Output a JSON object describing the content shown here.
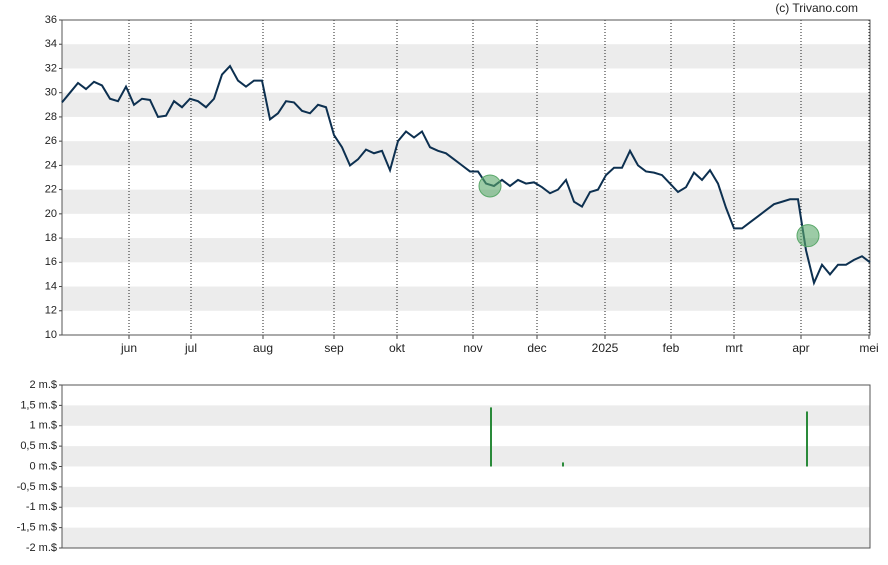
{
  "source": "(c) Trivano.com",
  "chart_data": [
    {
      "type": "line",
      "xlim": [
        0,
        101
      ],
      "xticks": [
        {
          "value": 8.375,
          "label": "jun"
        },
        {
          "value": 16.125,
          "label": "jul"
        },
        {
          "value": 25.125,
          "label": "aug"
        },
        {
          "value": 34,
          "label": "sep"
        },
        {
          "value": 41.875,
          "label": "okt"
        },
        {
          "value": 51.375,
          "label": "nov"
        },
        {
          "value": 59.375,
          "label": "dec"
        },
        {
          "value": 67.875,
          "label": "2025"
        },
        {
          "value": 76.125,
          "label": "feb"
        },
        {
          "value": 84,
          "label": "mrt"
        },
        {
          "value": 92.375,
          "label": "apr"
        },
        {
          "value": 100.875,
          "label": "mei"
        }
      ],
      "ylim": [
        10,
        36
      ],
      "yticks": [
        10,
        12,
        14,
        16,
        18,
        20,
        22,
        24,
        26,
        28,
        30,
        32,
        34,
        36
      ],
      "grid": true,
      "series": [
        {
          "color": "#0d3050",
          "values": [
            29.2,
            30.0,
            30.8,
            30.3,
            30.9,
            30.6,
            29.5,
            29.3,
            30.5,
            29.0,
            29.5,
            29.4,
            28.0,
            28.1,
            29.3,
            28.8,
            29.5,
            29.3,
            28.8,
            29.5,
            31.5,
            32.2,
            31.0,
            30.5,
            31.0,
            31.0,
            27.8,
            28.3,
            29.3,
            29.2,
            28.5,
            28.3,
            29.0,
            28.8,
            26.5,
            25.5,
            24.0,
            24.5,
            25.3,
            25.0,
            25.2,
            23.6,
            26.0,
            26.8,
            26.3,
            26.8,
            25.5,
            25.2,
            25.0,
            24.5,
            24.0,
            23.5,
            23.5,
            22.5,
            22.3,
            22.8,
            22.3,
            22.8,
            22.5,
            22.6,
            22.2,
            21.7,
            22.0,
            22.8,
            21.0,
            20.6,
            21.8,
            22.0,
            23.2,
            23.8,
            23.8,
            25.2,
            24.0,
            23.5,
            23.4,
            23.2,
            22.5,
            21.8,
            22.2,
            23.4,
            22.8,
            23.6,
            22.5,
            20.5,
            18.8,
            18.8,
            19.3,
            19.8,
            20.3,
            20.8,
            21.0,
            21.2,
            21.2,
            17.0,
            14.3,
            15.8,
            15.0,
            15.8,
            15.8,
            16.2,
            16.5,
            16.0
          ]
        }
      ],
      "markers": {
        "color": "#5aa86a",
        "x": [
          53.5,
          93.25
        ],
        "values": [
          22.3,
          18.2
        ]
      }
    },
    {
      "type": "bar",
      "xlim": [
        0,
        101
      ],
      "ylim": [
        -2,
        2
      ],
      "yticks": [
        {
          "value": -2,
          "label": "-2 m.$"
        },
        {
          "value": -1.5,
          "label": "-1,5 m.$"
        },
        {
          "value": -1,
          "label": "-1 m.$"
        },
        {
          "value": -0.5,
          "label": "-0,5 m.$"
        },
        {
          "value": 0,
          "label": "0 m.$"
        },
        {
          "value": 0.5,
          "label": "0,5 m.$"
        },
        {
          "value": 1,
          "label": "1 m.$"
        },
        {
          "value": 1.5,
          "label": "1,5 m.$"
        },
        {
          "value": 2,
          "label": "2 m.$"
        }
      ],
      "grid": true,
      "color": "#2a8a3a",
      "x": [
        53.625,
        62.625,
        93.125
      ],
      "values": [
        1.45,
        0.1,
        1.35
      ]
    }
  ]
}
